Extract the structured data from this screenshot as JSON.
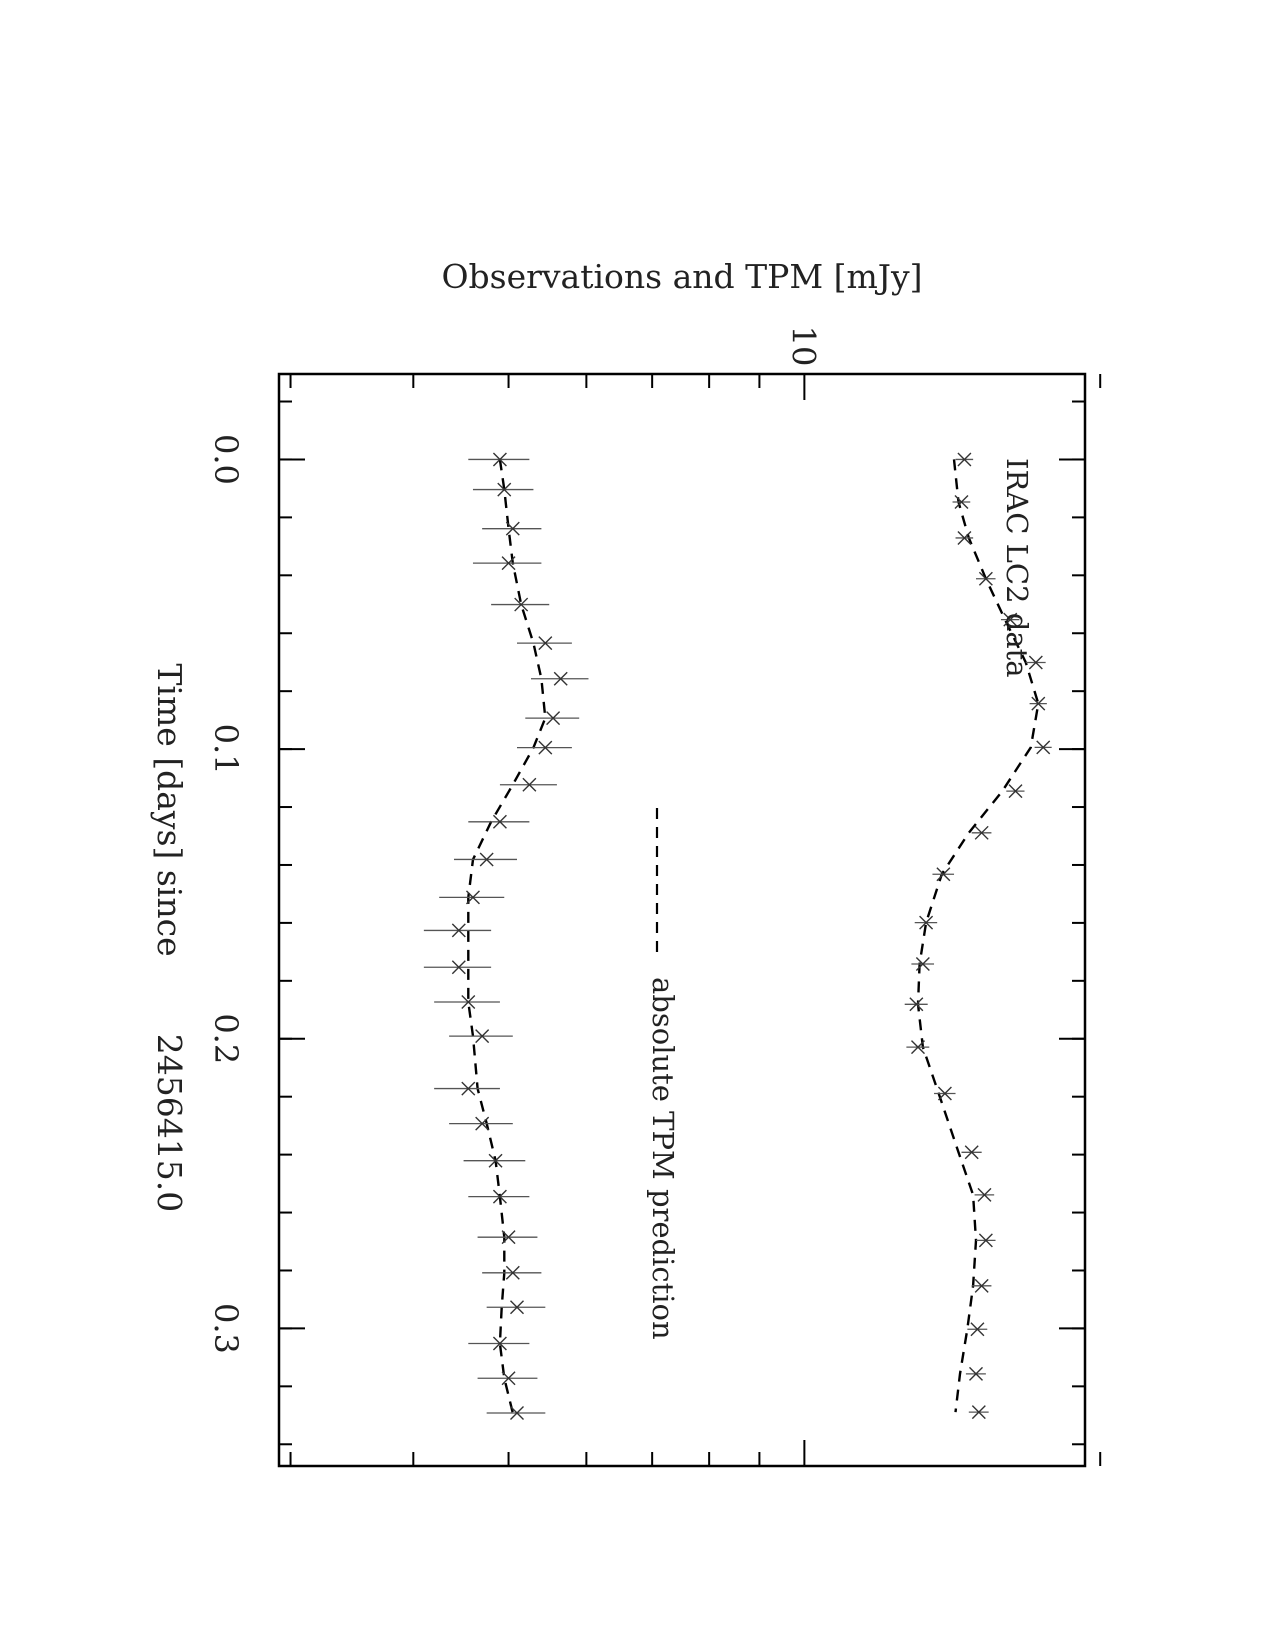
{
  "chart_data": {
    "type": "line",
    "ylabel": "Observations and TPM [mJy]",
    "xlabel": "Time [days] since",
    "xlabel_epoch": "2456415.0",
    "y_scale": "log",
    "y_range": [
      2.92,
      19.3
    ],
    "y_tick_labels": [
      {
        "value": 10,
        "label": "10"
      }
    ],
    "y_minor_ticks": [
      3,
      4,
      5,
      6,
      7,
      8,
      9,
      20
    ],
    "x_range": [
      -0.0295,
      0.3475
    ],
    "x_tick_labels": [
      {
        "value": 0.0,
        "label": "0.0"
      },
      {
        "value": 0.1,
        "label": "0.1"
      },
      {
        "value": 0.2,
        "label": "0.2"
      },
      {
        "value": 0.3,
        "label": "0.3"
      }
    ],
    "x_minor_step": 0.02,
    "legend": {
      "position": "center",
      "label": "absolute TPM prediction"
    },
    "annotations": [
      {
        "text": "IRAC LC2 data",
        "position": "top-left"
      }
    ],
    "series": [
      {
        "role": "upper",
        "x": [
          0.0,
          0.0147,
          0.0271,
          0.0412,
          0.0553,
          0.0701,
          0.0843,
          0.0994,
          0.1145,
          0.1289,
          0.1432,
          0.1599,
          0.1742,
          0.1881,
          0.2029,
          0.2189,
          0.2392,
          0.2539,
          0.2696,
          0.2853,
          0.3003,
          0.3157,
          0.3289
        ],
        "y": [
          14.55,
          14.45,
          14.55,
          15.3,
          16.2,
          17.2,
          17.3,
          17.5,
          16.4,
          15.15,
          13.85,
          13.3,
          13.2,
          13.0,
          13.05,
          13.9,
          14.8,
          15.25,
          15.3,
          15.15,
          15.0,
          14.95,
          15.05
        ],
        "yerr": [
          0.3,
          0.3,
          0.3,
          0.35,
          0.35,
          0.4,
          0.35,
          0.35,
          0.35,
          0.35,
          0.35,
          0.35,
          0.35,
          0.35,
          0.35,
          0.35,
          0.35,
          0.35,
          0.35,
          0.35,
          0.35,
          0.35,
          0.35
        ],
        "model": [
          14.2,
          14.35,
          14.7,
          15.3,
          16.0,
          16.8,
          17.3,
          17.0,
          15.9,
          14.7,
          13.8,
          13.3,
          13.1,
          13.05,
          13.2,
          13.7,
          14.35,
          14.85,
          14.95,
          14.85,
          14.65,
          14.4,
          14.25
        ]
      },
      {
        "role": "lower",
        "x": [
          0.0,
          0.0104,
          0.0239,
          0.0358,
          0.0501,
          0.0634,
          0.0757,
          0.0893,
          0.0995,
          0.1123,
          0.1251,
          0.1381,
          0.1512,
          0.1626,
          0.1753,
          0.1873,
          0.1991,
          0.2172,
          0.2293,
          0.2421,
          0.2545,
          0.2685,
          0.2808,
          0.2927,
          0.3052,
          0.3172,
          0.3292
        ],
        "y": [
          4.9,
          4.95,
          5.05,
          5.0,
          5.15,
          5.45,
          5.65,
          5.55,
          5.45,
          5.25,
          4.9,
          4.75,
          4.6,
          4.45,
          4.45,
          4.55,
          4.7,
          4.55,
          4.7,
          4.85,
          4.9,
          5.0,
          5.05,
          5.1,
          4.9,
          5.0,
          5.1
        ],
        "yerr": [
          0.35,
          0.35,
          0.35,
          0.4,
          0.35,
          0.35,
          0.38,
          0.35,
          0.35,
          0.35,
          0.35,
          0.35,
          0.35,
          0.35,
          0.35,
          0.35,
          0.35,
          0.35,
          0.35,
          0.35,
          0.35,
          0.35,
          0.35,
          0.35,
          0.35,
          0.35,
          0.35
        ],
        "model": [
          4.9,
          4.95,
          5.0,
          5.05,
          5.15,
          5.3,
          5.4,
          5.45,
          5.3,
          5.05,
          4.8,
          4.6,
          4.55,
          4.55,
          4.55,
          4.55,
          4.6,
          4.65,
          4.75,
          4.85,
          4.9,
          4.95,
          4.95,
          4.92,
          4.9,
          4.95,
          5.05
        ]
      }
    ]
  }
}
